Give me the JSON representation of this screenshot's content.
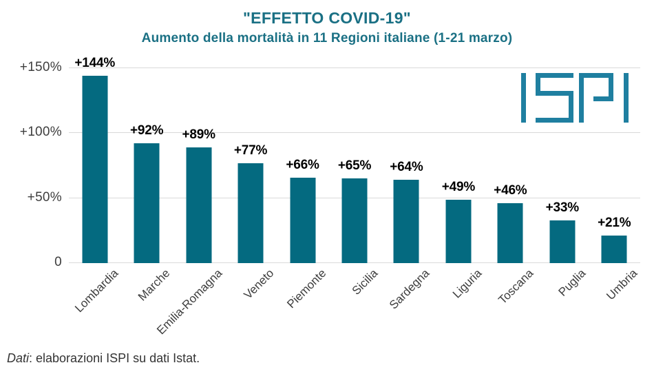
{
  "header": {
    "title": "\"EFFETTO COVID-19\"",
    "subtitle": "Aumento della mortalità in 11 Regioni italiane (1-21 marzo)"
  },
  "logo": {
    "name": "ISPI"
  },
  "chart_data": {
    "type": "bar",
    "title": "\"EFFETTO COVID-19\"",
    "subtitle": "Aumento della mortalità in 11 Regioni italiane (1-21 marzo)",
    "categories": [
      "Lombardia",
      "Marche",
      "Emilia-Romagna",
      "Veneto",
      "Piemonte",
      "Sicilia",
      "Sardegna",
      "Liguria",
      "Toscana",
      "Puglia",
      "Umbria"
    ],
    "values": [
      144,
      92,
      89,
      77,
      66,
      65,
      64,
      49,
      46,
      33,
      21
    ],
    "value_labels": [
      "+144%",
      "+92%",
      "+89%",
      "+77%",
      "+66%",
      "+65%",
      "+64%",
      "+49%",
      "+46%",
      "+33%",
      "+21%"
    ],
    "y_ticks": [
      "+150%",
      "+100%",
      "+50%",
      "0"
    ],
    "ylim": [
      0,
      150
    ],
    "grid": true,
    "legend": "none",
    "xlabel": "",
    "ylabel": ""
  },
  "footer": {
    "source_prefix": "Dati",
    "source_rest": ": elaborazioni ISPI su dati Istat."
  },
  "colors": {
    "title": "#1a7084",
    "bar": "#046a80",
    "logo": "#1f7fa0",
    "gridline": "#d9d9d9",
    "axis_text": "#3d3d3d",
    "value_label": "#000000",
    "footer_text": "#333333"
  }
}
